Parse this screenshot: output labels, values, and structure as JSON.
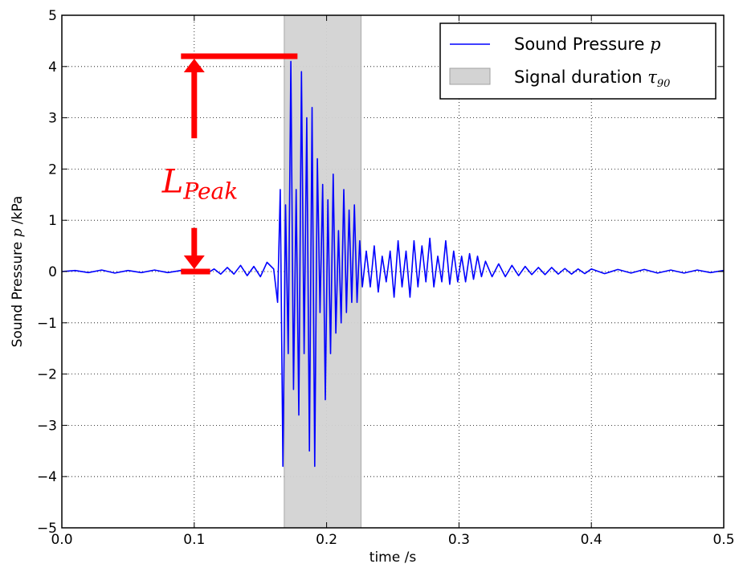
{
  "chart_data": {
    "type": "line",
    "xlabel": "time /s",
    "ylabel": "Sound Pressure p /kPa",
    "xlim": [
      0.0,
      0.5
    ],
    "ylim": [
      -5,
      5
    ],
    "xticks": [
      "0.0",
      "0.1",
      "0.2",
      "0.3",
      "0.4",
      "0.5"
    ],
    "xtick_values": [
      0.0,
      0.1,
      0.2,
      0.3,
      0.4,
      0.5
    ],
    "yticks": [
      "−5",
      "−4",
      "−3",
      "−2",
      "−1",
      "0",
      "1",
      "2",
      "3",
      "4",
      "5"
    ],
    "ytick_values": [
      -5,
      -4,
      -3,
      -2,
      -1,
      0,
      1,
      2,
      3,
      4,
      5
    ],
    "grid": true,
    "legend_position": "top-right",
    "series": [
      {
        "name": "Sound Pressure p",
        "color": "#0000ff",
        "x": [
          0.0,
          0.01,
          0.02,
          0.03,
          0.04,
          0.05,
          0.06,
          0.07,
          0.08,
          0.09,
          0.1,
          0.11,
          0.115,
          0.12,
          0.125,
          0.13,
          0.135,
          0.14,
          0.145,
          0.15,
          0.155,
          0.16,
          0.163,
          0.165,
          0.167,
          0.169,
          0.171,
          0.173,
          0.175,
          0.177,
          0.179,
          0.181,
          0.183,
          0.185,
          0.187,
          0.189,
          0.191,
          0.193,
          0.195,
          0.197,
          0.199,
          0.201,
          0.203,
          0.205,
          0.207,
          0.209,
          0.211,
          0.213,
          0.215,
          0.217,
          0.219,
          0.221,
          0.223,
          0.225,
          0.227,
          0.23,
          0.233,
          0.236,
          0.239,
          0.242,
          0.245,
          0.248,
          0.251,
          0.254,
          0.257,
          0.26,
          0.263,
          0.266,
          0.269,
          0.272,
          0.275,
          0.278,
          0.281,
          0.284,
          0.287,
          0.29,
          0.293,
          0.296,
          0.299,
          0.302,
          0.305,
          0.308,
          0.311,
          0.314,
          0.317,
          0.32,
          0.325,
          0.33,
          0.335,
          0.34,
          0.345,
          0.35,
          0.355,
          0.36,
          0.365,
          0.37,
          0.375,
          0.38,
          0.385,
          0.39,
          0.395,
          0.4,
          0.41,
          0.42,
          0.43,
          0.44,
          0.45,
          0.46,
          0.47,
          0.48,
          0.49,
          0.5
        ],
        "y": [
          0.0,
          0.02,
          -0.02,
          0.03,
          -0.03,
          0.02,
          -0.02,
          0.03,
          -0.02,
          0.02,
          0.0,
          -0.03,
          0.05,
          -0.05,
          0.08,
          -0.05,
          0.12,
          -0.08,
          0.1,
          -0.1,
          0.18,
          0.05,
          -0.6,
          1.6,
          -3.8,
          1.3,
          -1.6,
          4.1,
          -2.3,
          1.6,
          -2.8,
          3.9,
          -1.6,
          3.0,
          -3.5,
          3.2,
          -3.8,
          2.2,
          -0.8,
          1.7,
          -2.5,
          1.4,
          -1.6,
          1.9,
          -1.2,
          0.8,
          -1.0,
          1.6,
          -0.8,
          1.2,
          -0.6,
          1.3,
          -0.6,
          0.6,
          -0.3,
          0.4,
          -0.3,
          0.5,
          -0.4,
          0.3,
          -0.2,
          0.4,
          -0.5,
          0.6,
          -0.3,
          0.4,
          -0.5,
          0.6,
          -0.3,
          0.5,
          -0.2,
          0.65,
          -0.3,
          0.3,
          -0.2,
          0.6,
          -0.25,
          0.4,
          -0.2,
          0.3,
          -0.2,
          0.35,
          -0.15,
          0.3,
          -0.1,
          0.2,
          -0.1,
          0.15,
          -0.1,
          0.12,
          -0.08,
          0.1,
          -0.06,
          0.08,
          -0.06,
          0.08,
          -0.05,
          0.06,
          -0.05,
          0.05,
          -0.04,
          0.05,
          -0.04,
          0.04,
          -0.03,
          0.04,
          -0.03,
          0.03,
          -0.03,
          0.03,
          -0.02,
          0.02
        ]
      }
    ],
    "shaded_region": {
      "name": "Signal duration τ90",
      "x_start": 0.168,
      "x_end": 0.226,
      "color": "#d3d3d3"
    },
    "annotation": {
      "label": "L_Peak",
      "text_main": "L",
      "text_sub": "Peak",
      "color": "#ff0000",
      "y_low": 0.0,
      "y_high": 4.2,
      "x_arrow": 0.1,
      "x_low_start": 0.09,
      "x_low_end": 0.112,
      "x_high_start": 0.09,
      "x_high_end": 0.178
    },
    "legend": [
      {
        "label": "Sound Pressure ",
        "math": "p",
        "kind": "line",
        "color": "#0000ff"
      },
      {
        "label": "Signal duration ",
        "math": "τ",
        "math_sub": "90",
        "kind": "patch",
        "color": "#d3d3d3"
      }
    ],
    "ylabel_parts": {
      "pre": "Sound Pressure ",
      "math": "p",
      "post": " /kPa"
    }
  }
}
